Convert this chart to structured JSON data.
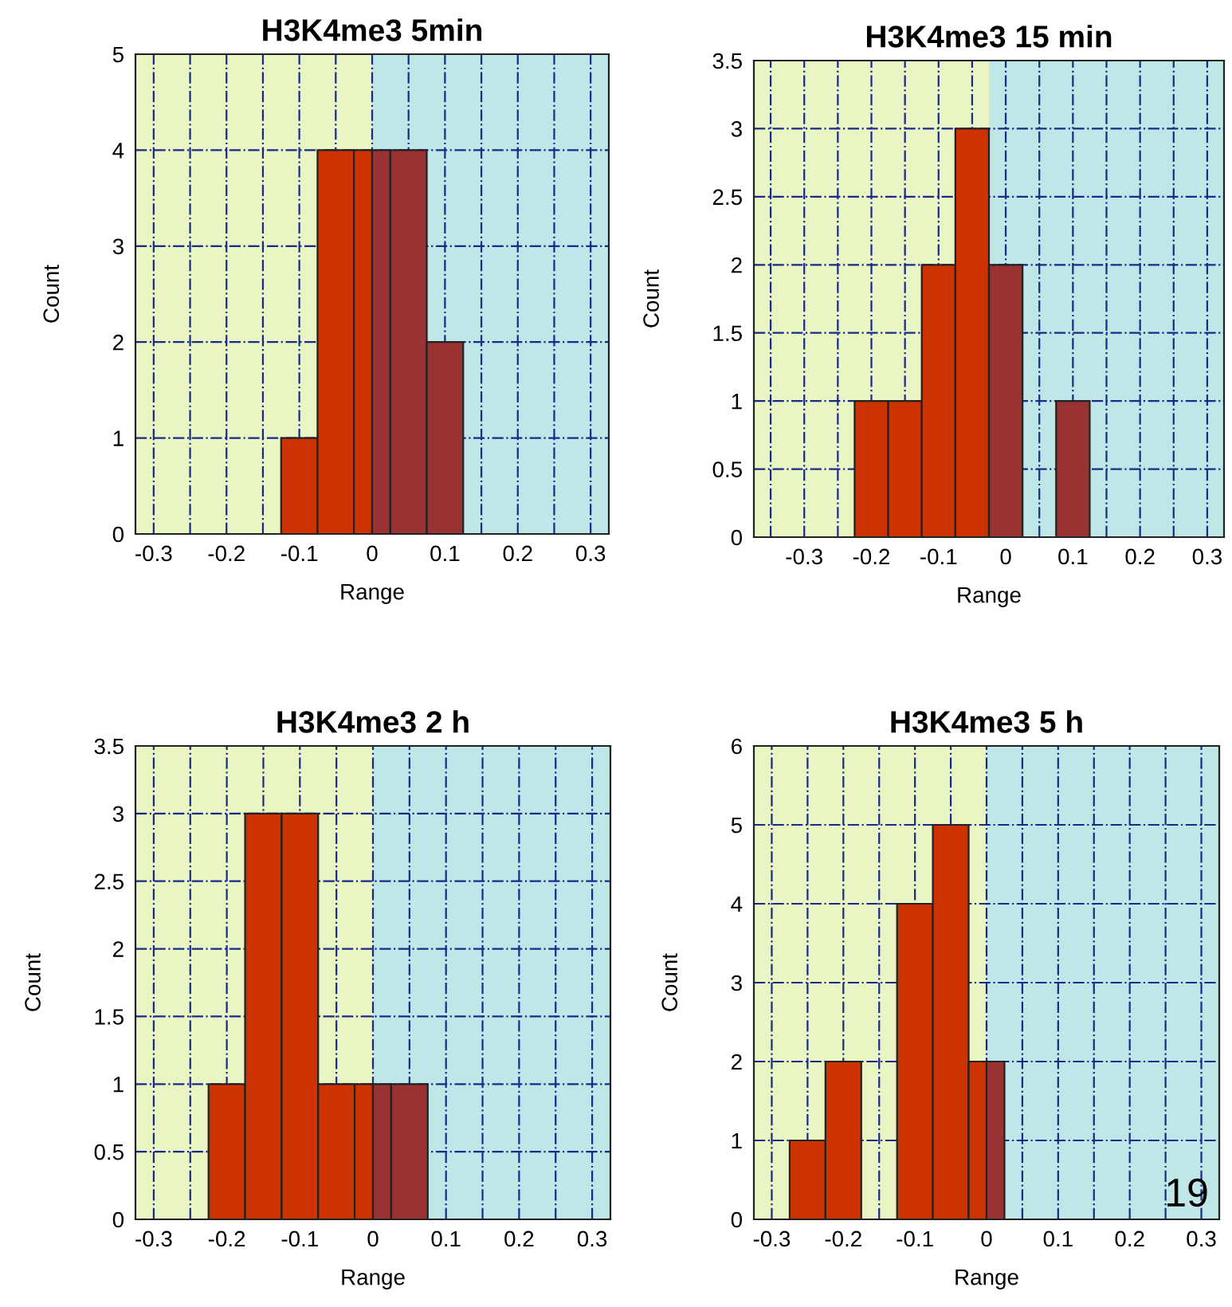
{
  "chart_data": [
    {
      "type": "histogram",
      "title": "H3K4me3 5min",
      "xlabel": "Range",
      "ylabel": "Count",
      "bins": [
        -0.125,
        -0.075,
        -0.025,
        0,
        0.025,
        0.075,
        0.125
      ],
      "values": [
        1,
        4,
        4,
        4,
        4,
        2
      ],
      "colors": [
        "#cc3300",
        "#cc3300",
        "#cc3300",
        "#993333",
        "#993333",
        "#993333"
      ],
      "xlim": [
        -0.325,
        0.325
      ],
      "xticks": [
        -0.3,
        {
          "value": -0.25,
          "label": null
        },
        -0.2,
        {
          "value": -0.15,
          "label": null
        },
        -0.1,
        {
          "value": -0.05,
          "label": null
        },
        0,
        {
          "value": 0.05,
          "label": null
        },
        0.1,
        {
          "value": 0.15,
          "label": null
        },
        0.2,
        {
          "value": 0.25,
          "label": null
        },
        0.3
      ],
      "ylim": [
        0,
        5
      ],
      "yticks": [
        0,
        1,
        2,
        3,
        4,
        5
      ],
      "grid": true,
      "bands": [
        {
          "axis": "x",
          "from": -0.325,
          "to": 0,
          "color": "#eaf5c4"
        },
        {
          "axis": "x",
          "from": 0,
          "to": 0.325,
          "color": "#bfe7e8"
        }
      ]
    },
    {
      "type": "histogram",
      "title": "H3K4me3 15 min",
      "xlabel": "Range",
      "ylabel": "Count",
      "bins": [
        -0.225,
        -0.175,
        -0.125,
        -0.075,
        -0.025,
        0.025,
        0.075,
        0.125
      ],
      "values": [
        1,
        1,
        2,
        3,
        2,
        0,
        1
      ],
      "colors": [
        "#cc3300",
        "#cc3300",
        "#cc3300",
        "#cc3300",
        "#993333",
        "#993333",
        "#993333"
      ],
      "xlim": [
        -0.375,
        0.325
      ],
      "xticks": [
        {
          "value": -0.35,
          "label": null
        },
        -0.3,
        {
          "value": -0.25,
          "label": null
        },
        -0.2,
        {
          "value": -0.15,
          "label": null
        },
        -0.1,
        {
          "value": -0.05,
          "label": null
        },
        0,
        {
          "value": 0.05,
          "label": null
        },
        0.1,
        {
          "value": 0.15,
          "label": null
        },
        0.2,
        {
          "value": 0.25,
          "label": null
        },
        0.3
      ],
      "ylim": [
        0,
        3.5
      ],
      "yticks": [
        0,
        0.5,
        1,
        1.5,
        2,
        2.5,
        3,
        3.5
      ],
      "grid": true,
      "bands": [
        {
          "axis": "x",
          "from": -0.375,
          "to": -0.025,
          "color": "#eaf5c4"
        },
        {
          "axis": "x",
          "from": -0.025,
          "to": 0.325,
          "color": "#bfe7e8"
        }
      ]
    },
    {
      "type": "histogram",
      "title": "H3K4me3 2 h",
      "xlabel": "Range",
      "ylabel": "Count",
      "bins": [
        -0.225,
        -0.175,
        -0.125,
        -0.075,
        -0.025,
        0,
        0.025,
        0.075
      ],
      "values": [
        1,
        3,
        3,
        1,
        1,
        1,
        1
      ],
      "colors": [
        "#cc3300",
        "#cc3300",
        "#cc3300",
        "#cc3300",
        "#cc3300",
        "#993333",
        "#993333"
      ],
      "xlim": [
        -0.325,
        0.325
      ],
      "xticks": [
        -0.3,
        {
          "value": -0.25,
          "label": null
        },
        -0.2,
        {
          "value": -0.15,
          "label": null
        },
        -0.1,
        {
          "value": -0.05,
          "label": null
        },
        0,
        {
          "value": 0.05,
          "label": null
        },
        0.1,
        {
          "value": 0.15,
          "label": null
        },
        0.2,
        {
          "value": 0.25,
          "label": null
        },
        0.3
      ],
      "ylim": [
        0,
        3.5
      ],
      "yticks": [
        0,
        0.5,
        1,
        1.5,
        2,
        2.5,
        3,
        3.5
      ],
      "grid": true,
      "bands": [
        {
          "axis": "x",
          "from": -0.325,
          "to": 0,
          "color": "#eaf5c4"
        },
        {
          "axis": "x",
          "from": 0,
          "to": 0.325,
          "color": "#bfe7e8"
        }
      ]
    },
    {
      "type": "histogram",
      "title": "H3K4me3 5 h",
      "xlabel": "Range",
      "ylabel": "Count",
      "bins": [
        -0.275,
        -0.225,
        -0.175,
        -0.125,
        -0.075,
        -0.025,
        0,
        0.025
      ],
      "values": [
        1,
        2,
        0,
        4,
        5,
        2,
        2
      ],
      "colors": [
        "#cc3300",
        "#cc3300",
        "#cc3300",
        "#cc3300",
        "#cc3300",
        "#cc3300",
        "#993333"
      ],
      "xlim": [
        -0.325,
        0.325
      ],
      "xticks": [
        -0.3,
        {
          "value": -0.25,
          "label": null
        },
        -0.2,
        {
          "value": -0.15,
          "label": null
        },
        -0.1,
        {
          "value": -0.05,
          "label": null
        },
        0,
        {
          "value": 0.05,
          "label": null
        },
        0.1,
        {
          "value": 0.15,
          "label": null
        },
        0.2,
        {
          "value": 0.25,
          "label": null
        },
        0.3
      ],
      "ylim": [
        0,
        6
      ],
      "yticks": [
        0,
        1,
        2,
        3,
        4,
        5,
        6
      ],
      "grid": true,
      "bands": [
        {
          "axis": "x",
          "from": -0.325,
          "to": 0,
          "color": "#eaf5c4"
        },
        {
          "axis": "x",
          "from": 0,
          "to": 0.325,
          "color": "#bfe7e8"
        }
      ],
      "annotations": [
        "19"
      ]
    }
  ]
}
